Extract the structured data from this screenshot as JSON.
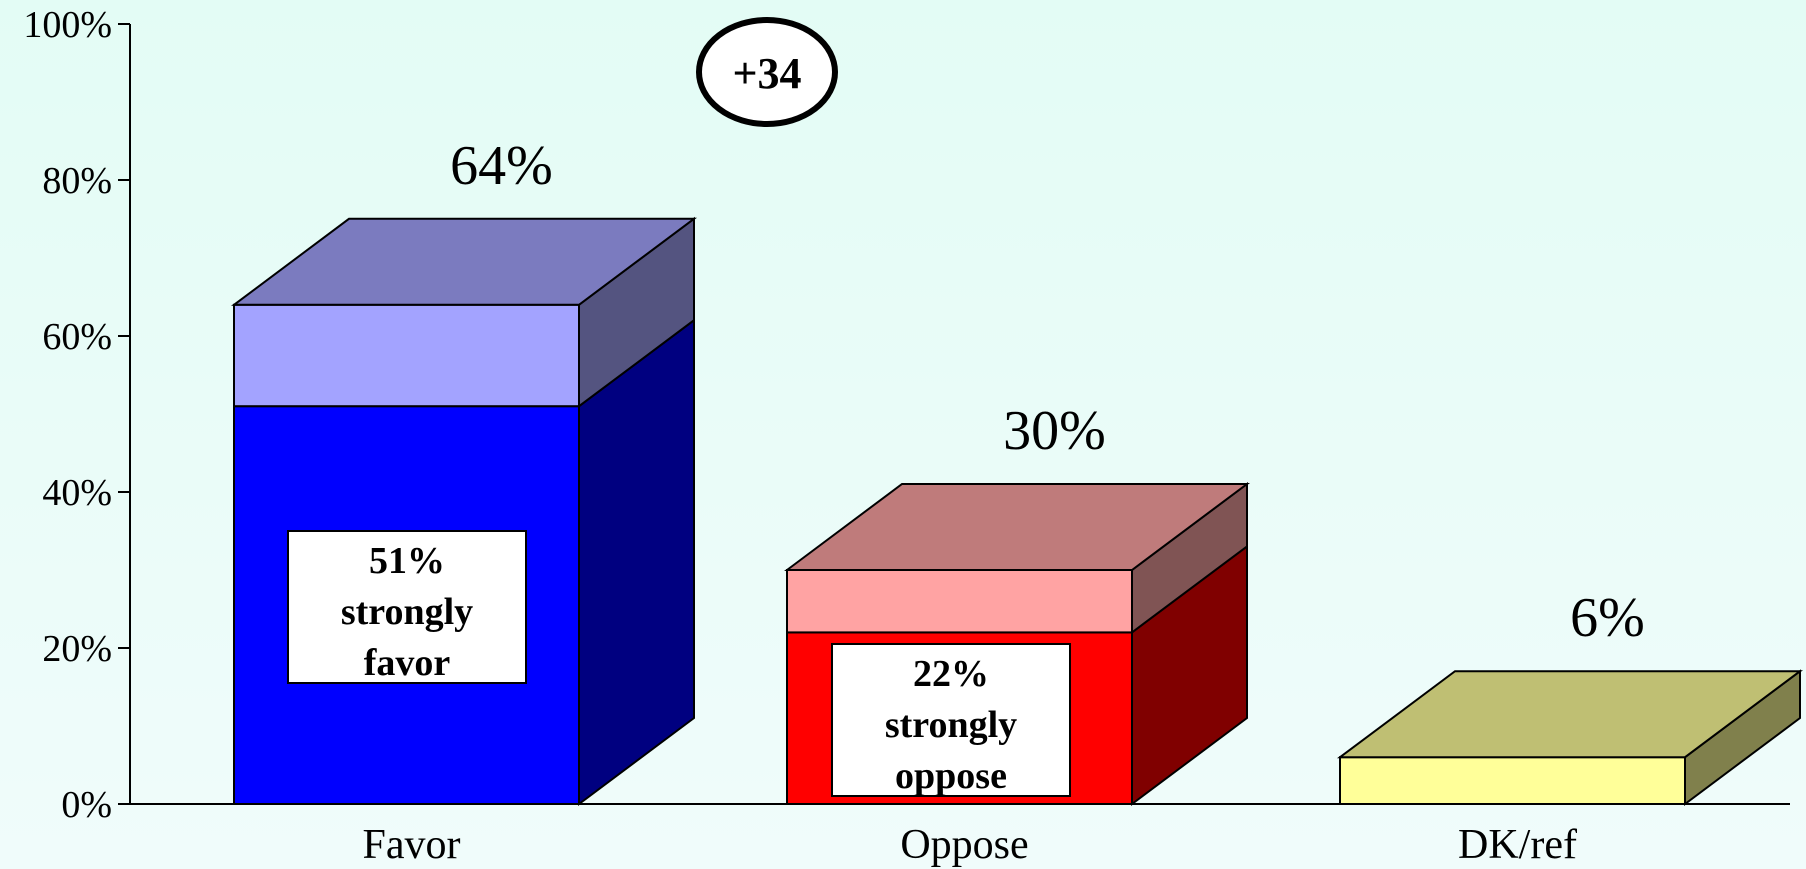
{
  "chart_data": {
    "type": "bar",
    "categories": [
      "Favor",
      "Oppose",
      "DK/ref"
    ],
    "values": [
      64,
      30,
      6
    ],
    "value_labels": [
      "64%",
      "30%",
      "6%"
    ],
    "strong_values": [
      51,
      22,
      null
    ],
    "strong_labels": [
      [
        "51%",
        "strongly",
        "favor"
      ],
      [
        "22%",
        "strongly",
        "oppose"
      ],
      null
    ],
    "ylim": [
      0,
      100
    ],
    "yticks": [
      0,
      20,
      40,
      60,
      80,
      100
    ],
    "ytick_labels": [
      "0%",
      "20%",
      "40%",
      "60%",
      "80%",
      "100%"
    ],
    "grid": false,
    "annotation": "+34",
    "colors": {
      "favor_front": "#0000ff",
      "favor_front_light": "#a3a3ff",
      "favor_top": "#7b7bbf",
      "favor_side_dark": "#000080",
      "favor_side_light": "#545480",
      "oppose_front": "#ff0000",
      "oppose_front_light": "#ffa3a3",
      "oppose_top": "#bf7b7b",
      "oppose_side_dark": "#800000",
      "oppose_side_light": "#805454",
      "dk_front": "#ffff99",
      "dk_top": "#bfbf73",
      "dk_side": "#80804c"
    }
  }
}
